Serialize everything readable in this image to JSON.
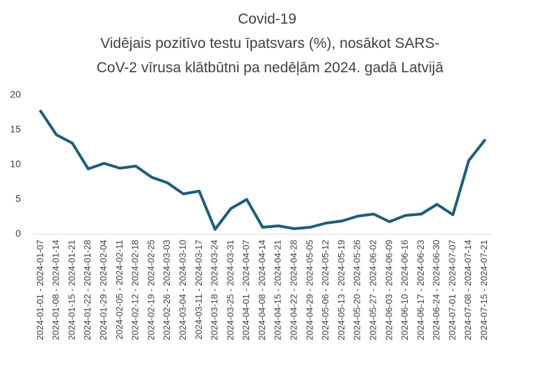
{
  "chart_data": {
    "type": "line",
    "title": [
      "Covid-19",
      "Vidējais pozitīvo testu īpatsvars (%), nosākot SARS-",
      "CoV-2 vīrusa klātbūtni pa nedēļām 2024. gadā Latvijā"
    ],
    "categories": [
      "2024-01-01 - 2024-01-07",
      "2024-01-08 - 2024-01-14",
      "2024-01-15 - 2024-01-21",
      "2024-01-22 - 2024-01-28",
      "2024-01-29 - 2024-02-04",
      "2024-02-05 - 2024-02-11",
      "2024-02-12 - 2024-02-18",
      "2024-02-19 - 2024-02-25",
      "2024-02-26 - 2024-03-03",
      "2024-03-04 - 2024-03-10",
      "2024-03-11 - 2024-03-17",
      "2024-03-18 - 2024-03-24",
      "2024-03-25 - 2024-03-31",
      "2024-04-01 - 2024-04-07",
      "2024-04-08 - 2024-04-14",
      "2024-04-15 - 2024-04-21",
      "2024-04-22 - 2024-04-28",
      "2024-04-29 - 2024-05-05",
      "2024-05-06 - 2024-05-12",
      "2024-05-13 - 2024-05-19",
      "2024-05-20 - 2024-05-26",
      "2024-05-27 - 2024-06-02",
      "2024-06-03 - 2024-06-09",
      "2024-06-10 - 2024-06-16",
      "2024-06-17 - 2024-06-23",
      "2024-06-24 - 2024-06-30",
      "2024-07-01 - 2024-07-07",
      "2024-07-08 - 2024-07-14",
      "2024-07-15 - 2024-07-21"
    ],
    "values": [
      17.7,
      14.3,
      13.1,
      9.4,
      10.2,
      9.5,
      9.8,
      8.2,
      7.4,
      5.8,
      6.2,
      0.7,
      3.7,
      5.0,
      1.0,
      1.2,
      0.8,
      1.0,
      1.6,
      1.9,
      2.6,
      2.9,
      1.8,
      2.7,
      2.9,
      4.3,
      2.8,
      10.6,
      13.5
    ],
    "color": "#1f5c7a",
    "ylim": [
      0,
      20
    ],
    "yticks": [
      0,
      5,
      10,
      15,
      20
    ],
    "grid": false
  }
}
